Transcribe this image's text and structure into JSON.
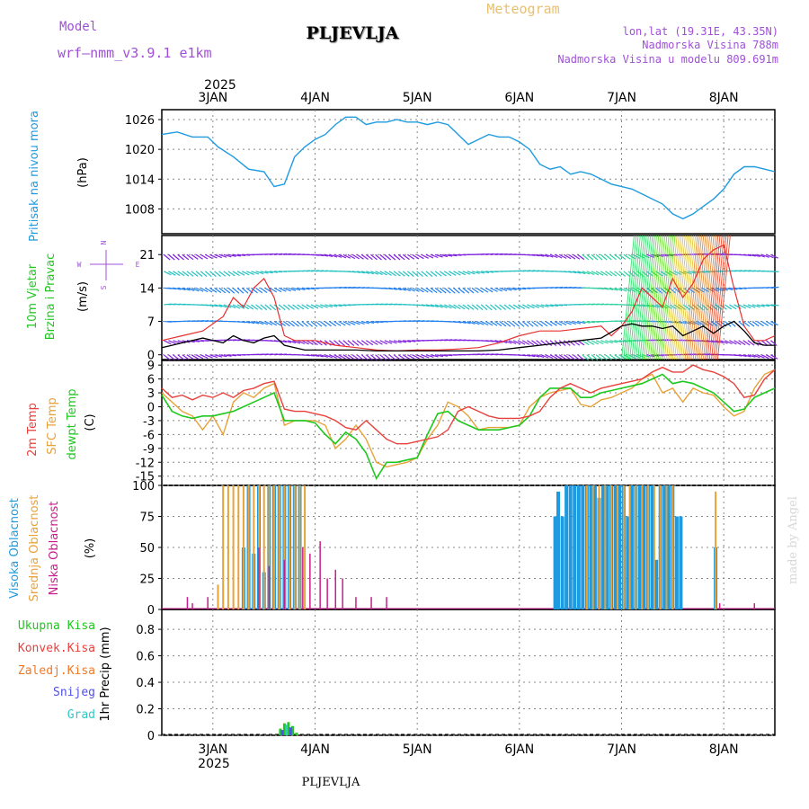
{
  "header": {
    "model_label": "Model",
    "model_name": "wrf—nmm_v3.9.1 e1km",
    "station": "PLJEVLJA",
    "meteogram": "Meteogram",
    "coords": "lon,lat (19.31E, 43.35N)",
    "elevation": "Nadmorska Visina 788m",
    "model_elevation": "Nadmorska Visina u modelu 809.691m",
    "footer_station": "PLJEVLJA",
    "credit": "made by Angel",
    "year_top": "2025",
    "year_bottom": "2025"
  },
  "colors": {
    "pressure": "#1e9be0",
    "temp2m": "#e8403c",
    "sfc": "#e8a23a",
    "dew": "#1ec81e",
    "high_cloud": "#1e9be0",
    "mid_cloud": "#e8a23a",
    "low_cloud": "#c81e8c",
    "total_precip": "#1ec81e",
    "conv_precip": "#e8403c",
    "ice_precip": "#f07828",
    "snow": "#5050e8",
    "hail": "#30c8c8",
    "title_purple": "#a050d8",
    "title_gold": "#e8c070",
    "wind_black": "#000000",
    "wind_red": "#e83030"
  },
  "chart_data": [
    {
      "type": "line",
      "panel": "pressure",
      "ylabel": "Pritisak na nivou mora",
      "unit": "(hPa)",
      "yticks": [
        "1026",
        "1020",
        "1014",
        "1008"
      ],
      "ylim": [
        1003,
        1028
      ],
      "x_ticks": [
        "3JAN",
        "4JAN",
        "5JAN",
        "6JAN",
        "7JAN",
        "8JAN"
      ],
      "x_days": [
        0,
        1,
        2,
        3,
        4,
        5
      ],
      "xlim": [
        -0.5,
        5.5
      ],
      "series": [
        {
          "x": [
            -0.5,
            -0.35,
            -0.2,
            -0.05,
            0.05,
            0.2,
            0.35,
            0.5,
            0.6,
            0.7,
            0.8,
            0.9,
            1.0,
            1.1,
            1.2,
            1.3,
            1.4,
            1.5,
            1.6,
            1.7,
            1.8,
            1.9,
            2.0,
            2.1,
            2.2,
            2.3,
            2.4,
            2.5,
            2.6,
            2.7,
            2.8,
            2.9,
            3.0,
            3.1,
            3.2,
            3.3,
            3.4,
            3.5,
            3.6,
            3.7,
            3.8,
            3.9,
            4.0,
            4.1,
            4.2,
            4.3,
            4.4,
            4.5,
            4.6,
            4.7,
            4.8,
            4.9,
            5.0,
            5.1,
            5.2,
            5.3,
            5.4,
            5.5
          ],
          "values": [
            1023,
            1023.5,
            1022.5,
            1022.5,
            1020.5,
            1018.5,
            1016,
            1015.5,
            1012.5,
            1013,
            1018.5,
            1020.5,
            1022,
            1023,
            1025,
            1026.5,
            1026.5,
            1025,
            1025.5,
            1025.5,
            1026,
            1025.5,
            1025.5,
            1025,
            1025.5,
            1025,
            1023,
            1021,
            1022,
            1023,
            1022.5,
            1022.5,
            1021.5,
            1020,
            1017,
            1016,
            1016.5,
            1015,
            1015.5,
            1015,
            1014,
            1013,
            1012.5,
            1012,
            1011,
            1010,
            1009,
            1007,
            1006,
            1007,
            1008.5,
            1010,
            1012,
            1015,
            1016.5,
            1016.5,
            1016,
            1015.5
          ]
        }
      ]
    },
    {
      "type": "line",
      "panel": "wind",
      "ylabel": "10m Vjetar",
      "ylabel2": "Brzina i Pravac",
      "unit": "(m/s)",
      "compass": {
        "n": "N",
        "s": "S",
        "w": "W",
        "e": "E"
      },
      "yticks": [
        "21",
        "14",
        "7",
        "0"
      ],
      "ylim": [
        -1,
        25
      ],
      "xlim": [
        -0.5,
        5.5
      ],
      "series": [
        {
          "name": "speed",
          "x": [
            -0.5,
            -0.4,
            -0.3,
            -0.2,
            -0.1,
            0,
            0.1,
            0.2,
            0.3,
            0.4,
            0.5,
            0.6,
            0.7,
            0.8,
            0.9,
            1.0,
            1.2,
            1.4,
            1.6,
            1.8,
            2.0,
            2.2,
            2.4,
            2.6,
            2.8,
            3.0,
            3.2,
            3.4,
            3.6,
            3.8,
            4.0,
            4.1,
            4.2,
            4.3,
            4.4,
            4.5,
            4.6,
            4.7,
            4.8,
            4.9,
            5.0,
            5.1,
            5.2,
            5.3,
            5.4,
            5.5
          ],
          "values": [
            1.5,
            2,
            2.5,
            3,
            3.5,
            3,
            2.5,
            4,
            3,
            2.5,
            3.5,
            4,
            2,
            1.5,
            1,
            1,
            1,
            1,
            0.8,
            0.8,
            0.8,
            0.8,
            0.8,
            0.8,
            1,
            1.5,
            2,
            2.5,
            3,
            3.5,
            6,
            6.5,
            6,
            6,
            5.5,
            6,
            4,
            5,
            6,
            4.5,
            6,
            7,
            5,
            2.5,
            2,
            2
          ]
        },
        {
          "name": "gust",
          "x": [
            -0.5,
            -0.3,
            -0.1,
            0.1,
            0.2,
            0.3,
            0.4,
            0.5,
            0.6,
            0.7,
            0.8,
            1.0,
            1.2,
            1.4,
            1.6,
            1.8,
            2.0,
            2.2,
            2.4,
            2.6,
            2.8,
            3.0,
            3.2,
            3.4,
            3.6,
            3.8,
            3.9,
            4.0,
            4.1,
            4.2,
            4.3,
            4.4,
            4.5,
            4.6,
            4.7,
            4.8,
            4.9,
            5.0,
            5.1,
            5.2,
            5.3,
            5.4,
            5.5
          ],
          "values": [
            3,
            4,
            5,
            8,
            12,
            10,
            14,
            16,
            12,
            4,
            3,
            3,
            2,
            1.5,
            1,
            0.8,
            1,
            1,
            1.2,
            1.5,
            2.5,
            4,
            5,
            5,
            5.5,
            6,
            4,
            6,
            9,
            14,
            12,
            10,
            16,
            12,
            15,
            20,
            22,
            23,
            14,
            6,
            3,
            3,
            4
          ]
        }
      ]
    },
    {
      "type": "line",
      "panel": "temperature",
      "ylabel": "2m Temp",
      "ylabel2": "SFC Temp",
      "ylabel3": "dewpt Temp",
      "unit": "(C)",
      "yticks": [
        "9",
        "6",
        "3",
        "0",
        "-3",
        "-6",
        "-9",
        "-12",
        "-15"
      ],
      "ylim": [
        -17,
        10
      ],
      "xlim": [
        -0.5,
        5.5
      ],
      "series": [
        {
          "name": "2m",
          "x": [
            -0.5,
            -0.4,
            -0.3,
            -0.2,
            -0.1,
            0,
            0.1,
            0.2,
            0.3,
            0.4,
            0.5,
            0.6,
            0.7,
            0.8,
            0.9,
            1.0,
            1.1,
            1.2,
            1.3,
            1.4,
            1.5,
            1.6,
            1.7,
            1.8,
            1.9,
            2.0,
            2.1,
            2.2,
            2.3,
            2.4,
            2.5,
            2.6,
            2.7,
            2.8,
            2.9,
            3.0,
            3.1,
            3.2,
            3.3,
            3.4,
            3.5,
            3.6,
            3.7,
            3.8,
            3.9,
            4.0,
            4.1,
            4.2,
            4.3,
            4.4,
            4.5,
            4.6,
            4.7,
            4.8,
            4.9,
            5.0,
            5.1,
            5.2,
            5.3,
            5.4,
            5.5
          ],
          "values": [
            4,
            2,
            2.5,
            1.5,
            2.5,
            2,
            3,
            2,
            3.5,
            4,
            5,
            5.5,
            -0.5,
            -1,
            -1,
            -1.5,
            -2,
            -3,
            -4.5,
            -5,
            -3,
            -5,
            -7,
            -8,
            -8,
            -7.5,
            -7,
            -6.5,
            -5,
            -1,
            0,
            -1,
            -2,
            -2.5,
            -2.5,
            -2.5,
            -2,
            -1,
            2,
            4,
            5,
            4,
            3,
            4,
            4.5,
            5,
            5.5,
            6,
            7.5,
            8.5,
            7.5,
            7.5,
            9,
            8,
            7.5,
            6.5,
            5,
            2,
            2.5,
            6,
            8
          ]
        },
        {
          "name": "sfc",
          "x": [
            -0.5,
            -0.4,
            -0.3,
            -0.2,
            -0.1,
            0,
            0.1,
            0.2,
            0.3,
            0.4,
            0.5,
            0.6,
            0.7,
            0.8,
            0.9,
            1.0,
            1.1,
            1.2,
            1.3,
            1.4,
            1.5,
            1.6,
            1.7,
            1.8,
            1.9,
            2.0,
            2.1,
            2.2,
            2.3,
            2.4,
            2.5,
            2.6,
            2.7,
            2.8,
            2.9,
            3.0,
            3.1,
            3.2,
            3.3,
            3.4,
            3.5,
            3.6,
            3.7,
            3.8,
            3.9,
            4.0,
            4.1,
            4.2,
            4.3,
            4.4,
            4.5,
            4.6,
            4.7,
            4.8,
            4.9,
            5.0,
            5.1,
            5.2,
            5.3,
            5.4,
            5.5
          ],
          "values": [
            3,
            1,
            -1,
            -2,
            -5,
            -2,
            -6,
            1,
            3,
            2,
            4,
            5,
            -4,
            -3,
            -3,
            -3,
            -4,
            -9,
            -7,
            -4,
            -7,
            -12,
            -13,
            -12.5,
            -12,
            -11,
            -7,
            -4,
            1,
            0,
            -2,
            -5,
            -4.5,
            -4.5,
            -4.5,
            -4,
            0,
            2,
            3,
            3.5,
            4,
            0.5,
            0,
            1.5,
            2,
            3,
            4,
            6,
            7,
            3,
            4,
            1,
            4,
            3,
            2.5,
            0,
            -2,
            -1,
            4,
            7,
            8
          ]
        },
        {
          "name": "dewpt",
          "x": [
            -0.5,
            -0.4,
            -0.3,
            -0.2,
            -0.1,
            0,
            0.1,
            0.2,
            0.3,
            0.4,
            0.5,
            0.6,
            0.7,
            0.8,
            0.9,
            1.0,
            1.1,
            1.2,
            1.3,
            1.4,
            1.5,
            1.6,
            1.7,
            1.8,
            1.9,
            2.0,
            2.1,
            2.2,
            2.3,
            2.4,
            2.5,
            2.6,
            2.7,
            2.8,
            2.9,
            3.0,
            3.1,
            3.2,
            3.3,
            3.4,
            3.5,
            3.6,
            3.7,
            3.8,
            3.9,
            4.0,
            4.1,
            4.2,
            4.3,
            4.4,
            4.5,
            4.6,
            4.7,
            4.8,
            4.9,
            5.0,
            5.1,
            5.2,
            5.3,
            5.4,
            5.5
          ],
          "values": [
            2.5,
            -1,
            -2,
            -2.5,
            -2,
            -2,
            -1.5,
            -1,
            0,
            1,
            2,
            3,
            -3,
            -3,
            -3,
            -3.5,
            -6,
            -8,
            -5.5,
            -7,
            -10,
            -15.5,
            -12,
            -12,
            -11.5,
            -11,
            -6,
            -1.5,
            -1,
            -3,
            -4,
            -5,
            -5,
            -5,
            -4.5,
            -4,
            -2,
            2,
            4,
            4,
            4,
            2,
            2,
            3,
            3.5,
            4,
            4.5,
            5,
            6,
            7,
            5,
            5.5,
            5,
            4,
            3,
            1,
            -1,
            -0.5,
            2,
            3,
            4
          ]
        }
      ]
    },
    {
      "type": "bar",
      "panel": "cloud",
      "ylabel": "Visoka Oblacnost",
      "ylabel2": "Srednja Oblacnost",
      "ylabel3": "Niska Oblacnost",
      "unit": "(%)",
      "yticks": [
        "100",
        "75",
        "50",
        "25",
        "0"
      ],
      "ylim": [
        0,
        100
      ],
      "xlim": [
        -0.5,
        5.5
      ],
      "series": [
        {
          "name": "high",
          "x": [
            0.3,
            0.35,
            0.4,
            0.45,
            0.5,
            0.55,
            0.6,
            0.65,
            0.7,
            0.75,
            0.8,
            0.85,
            3.35,
            3.38,
            3.42,
            3.46,
            3.5,
            3.54,
            3.58,
            3.62,
            3.66,
            3.7,
            3.74,
            3.78,
            3.82,
            3.86,
            3.9,
            3.94,
            3.98,
            4.02,
            4.06,
            4.1,
            4.14,
            4.18,
            4.22,
            4.26,
            4.3,
            4.34,
            4.38,
            4.42,
            4.46,
            4.5,
            4.54,
            4.58,
            4.92
          ],
          "values": [
            50,
            100,
            45,
            100,
            30,
            100,
            100,
            100,
            100,
            100,
            100,
            100,
            75,
            95,
            75,
            100,
            100,
            100,
            100,
            100,
            100,
            100,
            100,
            90,
            100,
            100,
            100,
            100,
            100,
            100,
            75,
            100,
            100,
            100,
            100,
            100,
            100,
            40,
            100,
            100,
            100,
            100,
            75,
            75,
            50
          ]
        },
        {
          "name": "mid",
          "x": [
            0.05,
            0.1,
            0.15,
            0.2,
            0.25,
            0.3,
            0.35,
            0.4,
            0.45,
            0.5,
            0.55,
            0.6,
            0.65,
            0.7,
            0.75,
            0.8,
            0.85,
            0.9,
            3.66,
            3.72,
            3.78,
            3.84,
            3.9,
            3.96,
            4.02,
            4.08,
            4.14,
            4.2,
            4.26,
            4.32,
            4.38,
            4.44,
            4.5,
            4.92
          ],
          "values": [
            20,
            100,
            100,
            100,
            100,
            100,
            100,
            100,
            100,
            100,
            100,
            100,
            100,
            100,
            100,
            100,
            100,
            100,
            100,
            100,
            100,
            100,
            100,
            100,
            100,
            100,
            100,
            100,
            100,
            100,
            100,
            100,
            100,
            95
          ]
        },
        {
          "name": "low",
          "x": [
            -0.25,
            -0.2,
            -0.05,
            0.45,
            0.55,
            0.7,
            0.88,
            0.95,
            1.05,
            1.12,
            1.2,
            1.27,
            1.4,
            1.55,
            1.7,
            4.96,
            5.3
          ],
          "values": [
            10,
            5,
            10,
            50,
            35,
            40,
            50,
            45,
            55,
            25,
            32,
            25,
            10,
            10,
            10,
            5,
            5
          ]
        }
      ]
    },
    {
      "type": "bar",
      "panel": "precip",
      "ylabel": "Ukupna Kisa",
      "ylabel2": "Konvek.Kisa",
      "ylabel3": "Zaledj.Kisa",
      "ylabel4": "Snijeg",
      "ylabel5": "Grad",
      "unit": "1hr Precip (mm)",
      "yticks": [
        "0.8",
        "0.6",
        "0.4",
        "0.2",
        "0"
      ],
      "ylim": [
        0,
        0.95
      ],
      "xlim": [
        -0.5,
        5.5
      ],
      "series": [
        {
          "name": "total",
          "x": [
            0.66,
            0.7,
            0.74,
            0.78,
            0.82
          ],
          "values": [
            0.05,
            0.09,
            0.1,
            0.07,
            0.02
          ]
        },
        {
          "name": "snow",
          "x": [
            0.68,
            0.76
          ],
          "values": [
            0.04,
            0.06
          ]
        },
        {
          "name": "hail",
          "x": [
            0.72
          ],
          "values": [
            0.08
          ]
        }
      ]
    }
  ]
}
